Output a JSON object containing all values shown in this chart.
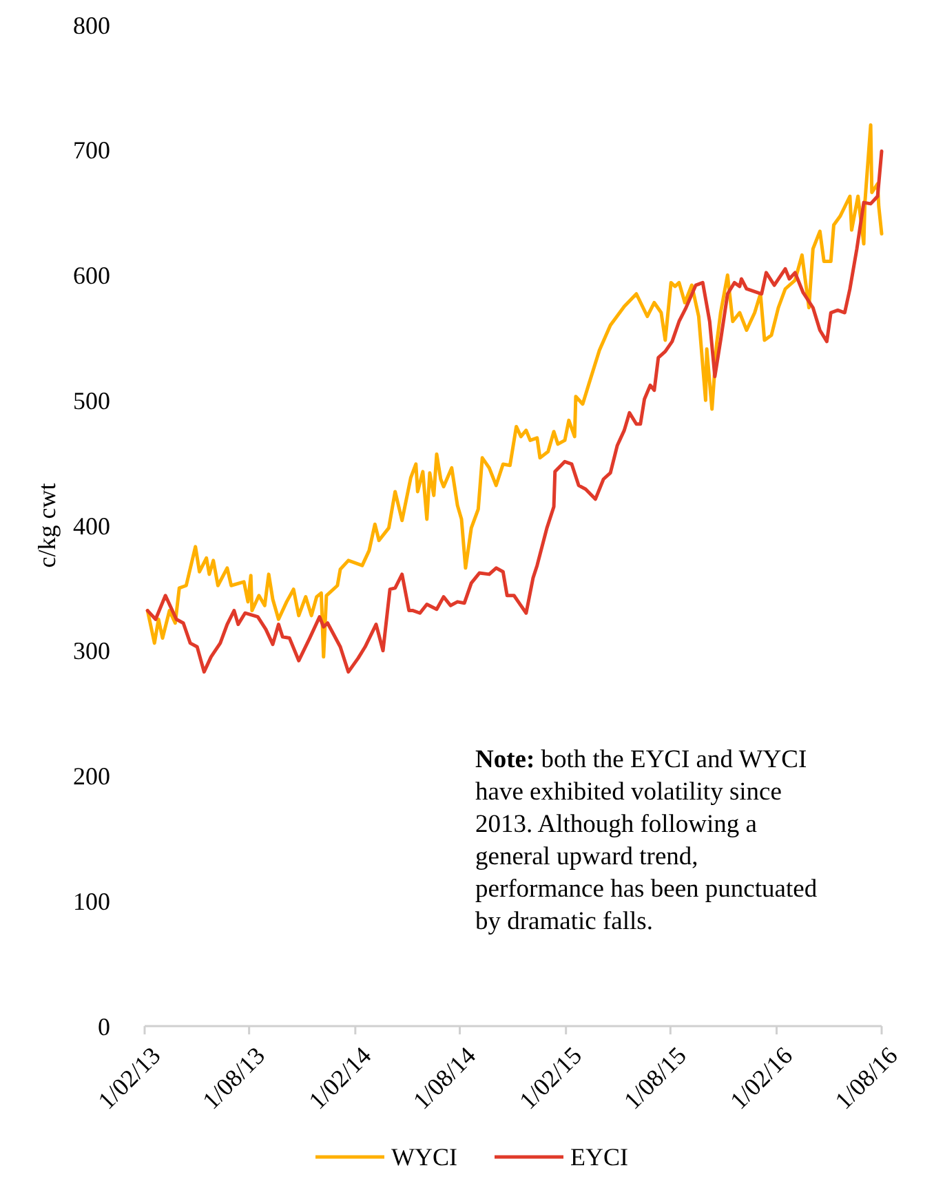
{
  "chart_data": {
    "type": "line",
    "ylabel": "c/kg cwt",
    "xlim": [
      "2013-02-01",
      "2016-08-01"
    ],
    "ylim": [
      0,
      800
    ],
    "xticks": [
      {
        "value": "2013-02-01",
        "label": "1/02/13"
      },
      {
        "value": "2013-08-01",
        "label": "1/08/13"
      },
      {
        "value": "2014-02-01",
        "label": "1/02/14"
      },
      {
        "value": "2014-08-01",
        "label": "1/08/14"
      },
      {
        "value": "2015-02-01",
        "label": "1/02/15"
      },
      {
        "value": "2015-08-01",
        "label": "1/08/15"
      },
      {
        "value": "2016-02-01",
        "label": "1/02/16"
      },
      {
        "value": "2016-08-01",
        "label": "1/08/16"
      }
    ],
    "yticks": [
      0,
      100,
      200,
      300,
      400,
      500,
      600,
      700,
      800
    ],
    "legend": "bottom",
    "grid": false,
    "line_style": "solid",
    "marker": "none",
    "annotations": [
      "Note: both the EYCI and WYCI have exhibited volatility since 2013. Although following a general upward trend, performance has been punctuated by dramatic falls."
    ],
    "series": [
      {
        "name": "WYCI",
        "color": "#ffb000",
        "x": [
          "2013-02-06",
          "2013-02-18",
          "2013-02-25",
          "2013-03-04",
          "2013-03-16",
          "2013-03-26",
          "2013-04-02",
          "2013-04-14",
          "2013-04-30",
          "2013-05-07",
          "2013-05-19",
          "2013-05-24",
          "2013-05-31",
          "2013-06-08",
          "2013-06-24",
          "2013-07-01",
          "2013-07-23",
          "2013-07-30",
          "2013-08-04",
          "2013-08-06",
          "2013-08-18",
          "2013-08-28",
          "2013-09-04",
          "2013-09-11",
          "2013-09-21",
          "2013-10-05",
          "2013-10-17",
          "2013-10-26",
          "2013-11-07",
          "2013-11-17",
          "2013-11-26",
          "2013-12-04",
          "2013-12-08",
          "2013-12-13",
          "2014-01-01",
          "2014-01-06",
          "2014-01-20",
          "2014-02-13",
          "2014-02-25",
          "2014-03-07",
          "2014-03-14",
          "2014-03-31",
          "2014-04-11",
          "2014-04-23",
          "2014-05-08",
          "2014-05-17",
          "2014-05-20",
          "2014-05-29",
          "2014-06-05",
          "2014-06-10",
          "2014-06-17",
          "2014-06-22",
          "2014-06-29",
          "2014-07-04",
          "2014-07-18",
          "2014-07-28",
          "2014-08-04",
          "2014-08-11",
          "2014-08-21",
          "2014-09-02",
          "2014-09-09",
          "2014-09-21",
          "2014-10-03",
          "2014-10-15",
          "2014-10-27",
          "2014-11-07",
          "2014-11-15",
          "2014-11-24",
          "2014-12-01",
          "2014-12-13",
          "2014-12-18",
          "2015-01-01",
          "2015-01-11",
          "2015-01-18",
          "2015-01-30",
          "2015-02-06",
          "2015-02-16",
          "2015-02-18",
          "2015-03-02",
          "2015-03-12",
          "2015-03-31",
          "2015-04-19",
          "2015-05-13",
          "2015-06-03",
          "2015-06-22",
          "2015-07-04",
          "2015-07-16",
          "2015-07-23",
          "2015-08-02",
          "2015-08-09",
          "2015-08-16",
          "2015-08-26",
          "2015-09-07",
          "2015-09-19",
          "2015-10-01",
          "2015-10-03",
          "2015-10-12",
          "2015-10-20",
          "2015-10-27",
          "2015-11-08",
          "2015-11-17",
          "2015-11-29",
          "2015-12-11",
          "2015-12-25",
          "2016-01-04",
          "2016-01-11",
          "2016-01-23",
          "2016-02-04",
          "2016-02-16",
          "2016-03-04",
          "2016-03-16",
          "2016-03-28",
          "2016-04-04",
          "2016-04-16",
          "2016-04-23",
          "2016-05-05",
          "2016-05-10",
          "2016-05-21",
          "2016-06-07",
          "2016-06-10",
          "2016-06-21",
          "2016-07-01",
          "2016-07-03",
          "2016-07-13",
          "2016-07-15",
          "2016-07-25",
          "2016-07-27",
          "2016-08-01"
        ],
        "values": [
          332,
          306,
          325,
          310,
          332,
          322,
          350,
          352,
          383,
          363,
          374,
          361,
          372,
          352,
          366,
          352,
          355,
          339,
          360,
          332,
          344,
          336,
          361,
          341,
          325,
          339,
          349,
          328,
          343,
          328,
          343,
          346,
          295,
          344,
          352,
          365,
          372,
          368,
          380,
          401,
          388,
          398,
          427,
          404,
          438,
          449,
          427,
          443,
          405,
          442,
          424,
          457,
          437,
          431,
          446,
          416,
          405,
          366,
          398,
          413,
          454,
          446,
          432,
          449,
          448,
          479,
          471,
          476,
          468,
          470,
          454,
          459,
          475,
          465,
          468,
          484,
          471,
          503,
          497,
          512,
          540,
          560,
          575,
          585,
          567,
          578,
          570,
          548,
          594,
          591,
          594,
          578,
          592,
          567,
          500,
          541,
          493,
          545,
          570,
          600,
          563,
          570,
          556,
          570,
          585,
          548,
          552,
          574,
          589,
          596,
          616,
          574,
          621,
          635,
          611,
          611,
          640,
          647,
          663,
          636,
          663,
          625,
          658,
          720,
          666,
          673,
          655,
          633
        ]
      },
      {
        "name": "EYCI",
        "color": "#e03a2a",
        "x": [
          "2013-02-06",
          "2013-02-20",
          "2013-03-09",
          "2013-03-21",
          "2013-03-28",
          "2013-04-09",
          "2013-04-21",
          "2013-05-03",
          "2013-05-15",
          "2013-05-27",
          "2013-06-12",
          "2013-06-24",
          "2013-07-06",
          "2013-07-13",
          "2013-07-25",
          "2013-08-16",
          "2013-08-30",
          "2013-09-11",
          "2013-09-21",
          "2013-09-28",
          "2013-10-10",
          "2013-10-26",
          "2013-11-14",
          "2013-12-01",
          "2013-12-08",
          "2013-12-15",
          "2014-01-06",
          "2014-01-20",
          "2014-02-06",
          "2014-02-18",
          "2014-03-09",
          "2014-03-21",
          "2014-04-02",
          "2014-04-11",
          "2014-04-23",
          "2014-05-05",
          "2014-05-12",
          "2014-05-24",
          "2014-06-05",
          "2014-06-22",
          "2014-07-04",
          "2014-07-16",
          "2014-07-28",
          "2014-08-09",
          "2014-08-21",
          "2014-09-04",
          "2014-09-21",
          "2014-10-03",
          "2014-10-15",
          "2014-10-22",
          "2014-11-03",
          "2014-11-15",
          "2014-11-24",
          "2014-12-06",
          "2014-12-13",
          "2014-12-30",
          "2015-01-11",
          "2015-01-13",
          "2015-01-30",
          "2015-02-11",
          "2015-02-23",
          "2015-03-07",
          "2015-03-24",
          "2015-04-07",
          "2015-04-19",
          "2015-05-01",
          "2015-05-13",
          "2015-05-22",
          "2015-06-03",
          "2015-06-10",
          "2015-06-17",
          "2015-06-27",
          "2015-07-04",
          "2015-07-11",
          "2015-07-23",
          "2015-08-04",
          "2015-08-16",
          "2015-08-28",
          "2015-09-14",
          "2015-09-26",
          "2015-10-08",
          "2015-10-17",
          "2015-10-27",
          "2015-11-08",
          "2015-11-20",
          "2015-11-29",
          "2015-12-02",
          "2015-12-11",
          "2016-01-06",
          "2016-01-14",
          "2016-01-28",
          "2016-02-16",
          "2016-02-23",
          "2016-03-04",
          "2016-03-18",
          "2016-04-04",
          "2016-04-16",
          "2016-04-28",
          "2016-05-05",
          "2016-05-17",
          "2016-05-29",
          "2016-06-07",
          "2016-06-19",
          "2016-07-01",
          "2016-07-13",
          "2016-07-25",
          "2016-08-01"
        ],
        "values": [
          332,
          325,
          344,
          332,
          325,
          322,
          306,
          303,
          283,
          295,
          306,
          321,
          332,
          321,
          330,
          327,
          317,
          305,
          321,
          311,
          310,
          292,
          310,
          327,
          319,
          322,
          303,
          283,
          294,
          303,
          321,
          300,
          349,
          350,
          361,
          332,
          332,
          330,
          337,
          333,
          343,
          336,
          339,
          338,
          354,
          362,
          361,
          366,
          363,
          344,
          344,
          336,
          330,
          358,
          368,
          398,
          415,
          443,
          451,
          449,
          432,
          429,
          421,
          437,
          442,
          464,
          476,
          490,
          481,
          481,
          501,
          512,
          508,
          534,
          539,
          547,
          563,
          574,
          592,
          594,
          563,
          519,
          548,
          585,
          594,
          591,
          597,
          589,
          585,
          602,
          592,
          605,
          597,
          602,
          586,
          574,
          556,
          547,
          570,
          572,
          570,
          589,
          621,
          658,
          657,
          663,
          699
        ]
      }
    ]
  }
}
